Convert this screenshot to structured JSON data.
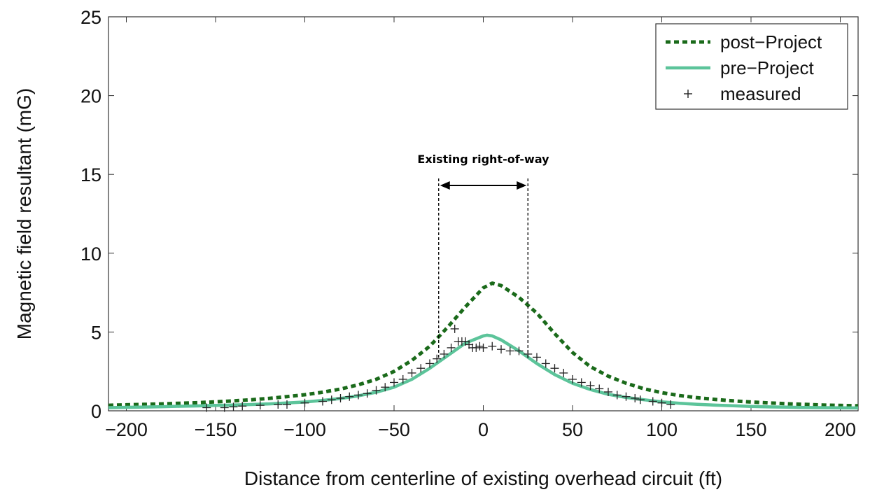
{
  "chart_data": {
    "type": "line",
    "title": "",
    "xlabel": "Distance from centerline of existing overhead circuit (ft)",
    "ylabel": "Magnetic field resultant (mG)",
    "xlim": [
      -210,
      210
    ],
    "ylim": [
      0,
      25
    ],
    "xticks": [
      -200,
      -150,
      -100,
      -50,
      0,
      50,
      100,
      150,
      200
    ],
    "yticks": [
      0,
      5,
      10,
      15,
      20,
      25
    ],
    "grid": false,
    "legend_position": "top-right",
    "colors": {
      "post_project": "#1a6a1a",
      "pre_project": "#5cc49a",
      "measured": "#222222",
      "annotation": "#000000"
    },
    "series": [
      {
        "name": "post−Project",
        "style": "dotted",
        "x": [
          -210,
          -200,
          -190,
          -180,
          -170,
          -160,
          -150,
          -140,
          -130,
          -120,
          -110,
          -100,
          -90,
          -80,
          -70,
          -60,
          -50,
          -40,
          -30,
          -20,
          -10,
          0,
          5,
          10,
          20,
          30,
          40,
          50,
          60,
          70,
          80,
          90,
          100,
          110,
          120,
          130,
          140,
          150,
          160,
          170,
          180,
          190,
          200,
          210
        ],
        "y": [
          0.35,
          0.38,
          0.41,
          0.44,
          0.48,
          0.52,
          0.57,
          0.63,
          0.7,
          0.79,
          0.9,
          1.02,
          1.18,
          1.38,
          1.65,
          2.0,
          2.5,
          3.2,
          4.1,
          5.3,
          6.6,
          7.8,
          8.1,
          7.95,
          7.2,
          6.2,
          4.9,
          3.7,
          2.8,
          2.2,
          1.75,
          1.4,
          1.15,
          0.97,
          0.83,
          0.72,
          0.63,
          0.56,
          0.5,
          0.45,
          0.41,
          0.37,
          0.34,
          0.32
        ]
      },
      {
        "name": "pre−Project",
        "style": "solid",
        "x": [
          -210,
          -200,
          -190,
          -180,
          -170,
          -160,
          -150,
          -140,
          -130,
          -120,
          -110,
          -100,
          -90,
          -80,
          -70,
          -60,
          -50,
          -40,
          -30,
          -20,
          -10,
          0,
          2,
          5,
          10,
          20,
          30,
          40,
          50,
          60,
          70,
          80,
          90,
          100,
          110,
          120,
          130,
          140,
          150,
          160,
          170,
          180,
          190,
          200,
          210
        ],
        "y": [
          0.2,
          0.22,
          0.24,
          0.26,
          0.29,
          0.31,
          0.34,
          0.37,
          0.4,
          0.44,
          0.5,
          0.56,
          0.66,
          0.78,
          0.95,
          1.18,
          1.5,
          2.0,
          2.7,
          3.5,
          4.3,
          4.75,
          4.8,
          4.75,
          4.5,
          3.8,
          3.0,
          2.3,
          1.75,
          1.35,
          1.05,
          0.85,
          0.7,
          0.57,
          0.48,
          0.41,
          0.36,
          0.32,
          0.28,
          0.25,
          0.23,
          0.21,
          0.2,
          0.19,
          0.18
        ]
      },
      {
        "name": "measured",
        "style": "markers",
        "x": [
          -155,
          -145,
          -140,
          -135,
          -125,
          -115,
          -110,
          -100,
          -90,
          -85,
          -80,
          -75,
          -70,
          -65,
          -60,
          -55,
          -50,
          -45,
          -40,
          -35,
          -30,
          -26,
          -22,
          -18,
          -16,
          -14,
          -12,
          -10,
          -8,
          -6,
          -4,
          -2,
          0,
          5,
          10,
          15,
          20,
          25,
          30,
          35,
          40,
          45,
          50,
          55,
          60,
          65,
          70,
          75,
          80,
          85,
          88,
          95,
          100,
          105
        ],
        "y": [
          0.2,
          0.2,
          0.25,
          0.3,
          0.35,
          0.4,
          0.4,
          0.5,
          0.6,
          0.7,
          0.8,
          0.9,
          1.0,
          1.1,
          1.3,
          1.5,
          1.8,
          2.0,
          2.4,
          2.7,
          3.0,
          3.3,
          3.6,
          4.0,
          5.2,
          4.4,
          4.4,
          4.4,
          4.2,
          4.0,
          4.0,
          4.1,
          4.0,
          4.1,
          3.9,
          3.8,
          3.8,
          3.6,
          3.4,
          3.0,
          2.7,
          2.4,
          2.0,
          1.8,
          1.6,
          1.4,
          1.2,
          1.0,
          0.9,
          0.8,
          0.7,
          0.6,
          0.5,
          0.4
        ]
      }
    ],
    "annotations": [
      {
        "text": "Existing right-of-way",
        "x_range": [
          -25,
          25
        ],
        "arrow_y": 14.3
      }
    ]
  }
}
